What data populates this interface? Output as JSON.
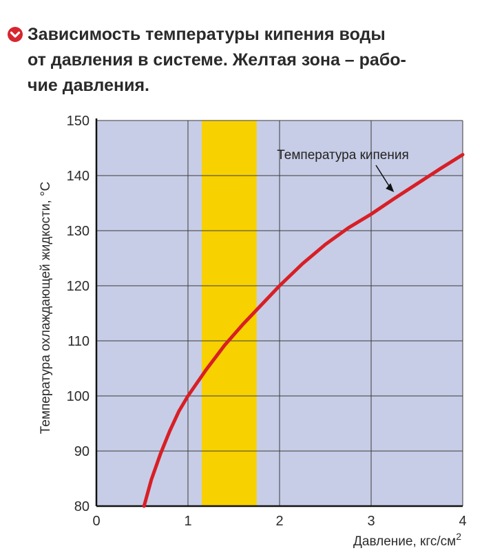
{
  "caption": {
    "lines": [
      "Зависимость температуры кипения воды",
      "от давления в системе. Желтая зона – рабо-",
      "чие давления."
    ],
    "icon": "check-icon",
    "icon_color": "#d6262f"
  },
  "chart_data": {
    "type": "line",
    "title": "Зависимость температуры кипения воды от давления в системе. Желтая зона – рабочие давления.",
    "xlabel": "Давление, кгс/см",
    "xlabel_sup": "2",
    "ylabel": "Температура охлаждающей жидкости, °С",
    "xlim": [
      0,
      4
    ],
    "ylim": [
      80,
      150
    ],
    "x_ticks": [
      "0",
      "1",
      "2",
      "3",
      "4"
    ],
    "y_ticks": [
      "80",
      "90",
      "100",
      "110",
      "120",
      "130",
      "140",
      "150"
    ],
    "x_tick_values": [
      0,
      1,
      2,
      3,
      4
    ],
    "y_tick_values": [
      80,
      90,
      100,
      110,
      120,
      130,
      140,
      150
    ],
    "grid": true,
    "background_color": "#c7cde6",
    "highlight_band": {
      "x_from": 1.15,
      "x_to": 1.75,
      "color": "#f7d100"
    },
    "series": [
      {
        "name": "Температура кипения",
        "color": "#d81f26",
        "x": [
          0.52,
          0.6,
          0.7,
          0.8,
          0.9,
          1.0,
          1.2,
          1.4,
          1.6,
          1.8,
          2.0,
          2.25,
          2.5,
          2.75,
          3.0,
          3.25,
          3.5,
          3.75,
          4.0
        ],
        "y": [
          80.0,
          84.8,
          89.5,
          93.6,
          97.2,
          100.0,
          104.8,
          109.2,
          113.0,
          116.5,
          120.0,
          124.0,
          127.5,
          130.5,
          133.0,
          135.8,
          138.5,
          141.2,
          143.8
        ]
      }
    ],
    "annotations": [
      {
        "text": "Температура кипения",
        "points_to": {
          "x": 3.25,
          "y": 137.0
        }
      }
    ]
  }
}
